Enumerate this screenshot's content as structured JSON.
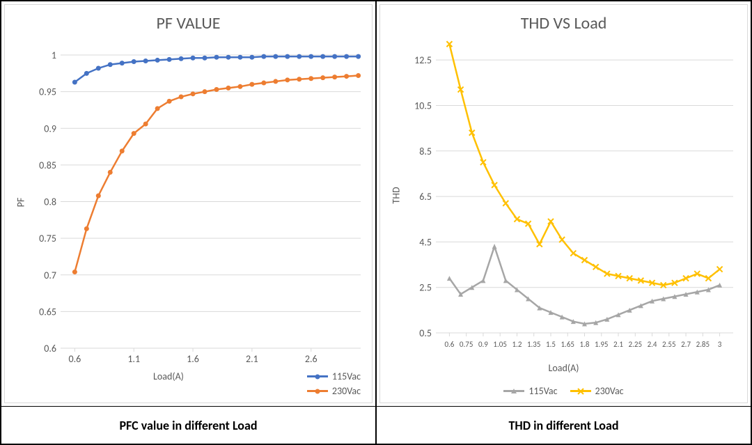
{
  "left_chart": {
    "type": "line",
    "title": "PF VALUE",
    "title_fontsize": 24,
    "title_color": "#595959",
    "xlabel": "Load(A)",
    "ylabel": "PF",
    "label_fontsize": 14,
    "label_color": "#595959",
    "background_color": "#ffffff",
    "border_color": "#d9d9d9",
    "grid_color": "#d9d9d9",
    "xlim": [
      0.48,
      3.02
    ],
    "ylim": [
      0.6,
      1.02
    ],
    "xticks": [
      0.6,
      1.1,
      1.6,
      2.1,
      2.6
    ],
    "yticks": [
      0.6,
      0.65,
      0.7,
      0.75,
      0.8,
      0.85,
      0.9,
      0.95,
      1
    ],
    "tick_fontsize": 14,
    "tick_color": "#595959",
    "series": [
      {
        "name": "115Vac",
        "color": "#4472c4",
        "marker": "circle",
        "marker_size": 7,
        "line_width": 2.5,
        "x": [
          0.6,
          0.7,
          0.8,
          0.9,
          1.0,
          1.1,
          1.2,
          1.3,
          1.4,
          1.5,
          1.6,
          1.7,
          1.8,
          1.9,
          2.0,
          2.1,
          2.2,
          2.3,
          2.4,
          2.5,
          2.6,
          2.7,
          2.8,
          2.9,
          3.0
        ],
        "y": [
          0.963,
          0.975,
          0.982,
          0.987,
          0.989,
          0.991,
          0.992,
          0.993,
          0.994,
          0.995,
          0.996,
          0.996,
          0.997,
          0.997,
          0.997,
          0.997,
          0.998,
          0.998,
          0.998,
          0.998,
          0.998,
          0.998,
          0.998,
          0.998,
          0.998
        ]
      },
      {
        "name": "230Vac",
        "color": "#ed7d31",
        "marker": "circle",
        "marker_size": 7,
        "line_width": 2.5,
        "x": [
          0.6,
          0.7,
          0.8,
          0.9,
          1.0,
          1.1,
          1.2,
          1.3,
          1.4,
          1.5,
          1.6,
          1.7,
          1.8,
          1.9,
          2.0,
          2.1,
          2.2,
          2.3,
          2.4,
          2.5,
          2.6,
          2.7,
          2.8,
          2.9,
          3.0
        ],
        "y": [
          0.704,
          0.763,
          0.808,
          0.84,
          0.869,
          0.893,
          0.906,
          0.927,
          0.937,
          0.943,
          0.947,
          0.95,
          0.953,
          0.955,
          0.957,
          0.96,
          0.962,
          0.964,
          0.966,
          0.967,
          0.968,
          0.969,
          0.97,
          0.971,
          0.972
        ]
      }
    ],
    "legend_position": "bottom-right-in-axis-row",
    "caption": "PFC value in different Load"
  },
  "right_chart": {
    "type": "line",
    "title": "THD VS Load",
    "title_fontsize": 24,
    "title_color": "#595959",
    "xlabel": "Load(A)",
    "ylabel": "THD",
    "label_fontsize": 14,
    "label_color": "#595959",
    "background_color": "#ffffff",
    "border_color": "#d9d9d9",
    "grid_color": "#d9d9d9",
    "xlim": [
      0.48,
      3.12
    ],
    "ylim": [
      0.5,
      13.3
    ],
    "xticks_labels": [
      "0.6",
      "0.75",
      "0.9",
      "1.05",
      "1.2",
      "1.35",
      "1.5",
      "1.65",
      "1.8",
      "1.95",
      "2.1",
      "2.25",
      "2.4",
      "2.55",
      "2.7",
      "2.85",
      "3"
    ],
    "xticks": [
      0.6,
      0.75,
      0.9,
      1.05,
      1.2,
      1.35,
      1.5,
      1.65,
      1.8,
      1.95,
      2.1,
      2.25,
      2.4,
      2.55,
      2.7,
      2.85,
      3.0
    ],
    "yticks": [
      0.5,
      2.5,
      4.5,
      6.5,
      8.5,
      10.5,
      12.5
    ],
    "tick_fontsize": 14,
    "tick_color": "#595959",
    "series": [
      {
        "name": "115Vac",
        "color": "#a6a6a6",
        "marker": "triangle",
        "marker_size": 7,
        "line_width": 2.5,
        "x": [
          0.6,
          0.7,
          0.8,
          0.9,
          1.0,
          1.1,
          1.2,
          1.3,
          1.4,
          1.5,
          1.6,
          1.7,
          1.8,
          1.9,
          2.0,
          2.1,
          2.2,
          2.3,
          2.4,
          2.5,
          2.6,
          2.7,
          2.8,
          2.9,
          3.0
        ],
        "y": [
          2.9,
          2.2,
          2.5,
          2.8,
          4.3,
          2.8,
          2.4,
          2.0,
          1.6,
          1.4,
          1.2,
          1.0,
          0.9,
          0.95,
          1.1,
          1.3,
          1.5,
          1.7,
          1.9,
          2.0,
          2.1,
          2.2,
          2.3,
          2.4,
          2.6
        ]
      },
      {
        "name": "230Vac",
        "color": "#ffc000",
        "marker": "x",
        "marker_size": 8,
        "line_width": 2.5,
        "x": [
          0.6,
          0.7,
          0.8,
          0.9,
          1.0,
          1.1,
          1.2,
          1.3,
          1.4,
          1.5,
          1.6,
          1.7,
          1.8,
          1.9,
          2.0,
          2.1,
          2.2,
          2.3,
          2.4,
          2.5,
          2.6,
          2.7,
          2.8,
          2.9,
          3.0
        ],
        "y": [
          13.2,
          11.2,
          9.3,
          8.0,
          7.0,
          6.2,
          5.5,
          5.3,
          4.4,
          5.4,
          4.6,
          4.0,
          3.7,
          3.4,
          3.1,
          3.0,
          2.9,
          2.8,
          2.7,
          2.6,
          2.7,
          2.9,
          3.1,
          2.9,
          3.3
        ]
      }
    ],
    "legend_position": "bottom-center",
    "caption": "THD in different Load"
  }
}
